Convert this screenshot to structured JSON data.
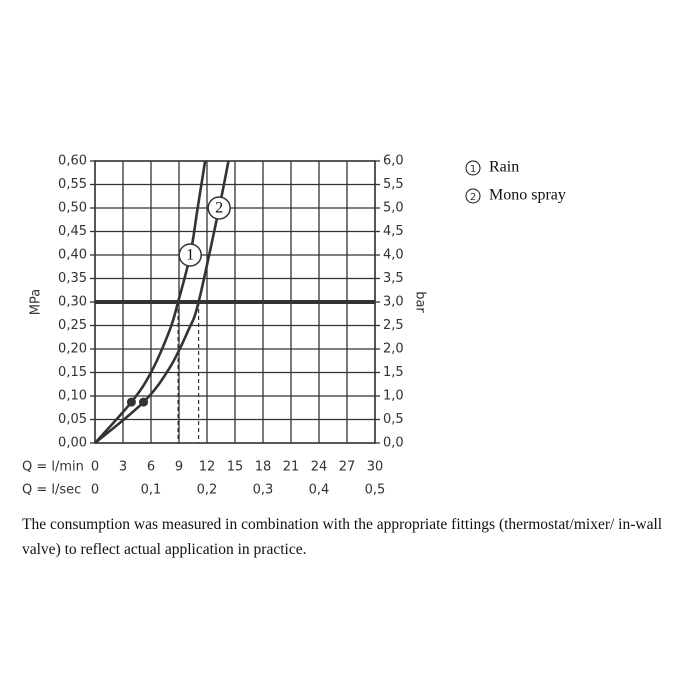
{
  "chart_data": {
    "type": "line",
    "series": [
      {
        "name": "Rain",
        "label": "1",
        "color": "#333333",
        "x": [
          0,
          3.9,
          6,
          8,
          8.9,
          10.2,
          11,
          11.8
        ],
        "values": [
          0,
          0.087,
          0.15,
          0.24,
          0.3,
          0.4,
          0.5,
          0.6
        ]
      },
      {
        "name": "Mono spray",
        "label": "2",
        "color": "#333333",
        "x": [
          0,
          5.2,
          8,
          10,
          11.1,
          13.3,
          14.3
        ],
        "values": [
          0,
          0.087,
          0.16,
          0.24,
          0.3,
          0.5,
          0.6
        ]
      }
    ],
    "xlim": [
      0,
      30
    ],
    "xticks": [
      0,
      3,
      6,
      9,
      12,
      15,
      18,
      21,
      24,
      27,
      30
    ],
    "xlabel": "Q = l/min",
    "x2lim": [
      0,
      0.5
    ],
    "x2ticks": [
      0,
      {
        "value": 0.1,
        "label": "0,1"
      },
      {
        "value": 0.2,
        "label": "0,2"
      },
      {
        "value": 0.3,
        "label": "0,3"
      },
      {
        "value": 0.4,
        "label": "0,4"
      },
      {
        "value": 0.5,
        "label": "0,5"
      }
    ],
    "x2label": "Q = l/sec",
    "ylim": [
      0,
      0.6
    ],
    "ylabel": "MPa",
    "yticks": [
      {
        "value": 0,
        "label": "0,00"
      },
      {
        "value": 0.05,
        "label": "0,05"
      },
      {
        "value": 0.1,
        "label": "0,10"
      },
      {
        "value": 0.15,
        "label": "0,15"
      },
      {
        "value": 0.2,
        "label": "0,20"
      },
      {
        "value": 0.25,
        "label": "0,25"
      },
      {
        "value": 0.3,
        "label": "0,30"
      },
      {
        "value": 0.35,
        "label": "0,35"
      },
      {
        "value": 0.4,
        "label": "0,40"
      },
      {
        "value": 0.45,
        "label": "0,45"
      },
      {
        "value": 0.5,
        "label": "0,50"
      },
      {
        "value": 0.55,
        "label": "0,55"
      },
      {
        "value": 0.6,
        "label": "0,60"
      }
    ],
    "y2lim": [
      0,
      6
    ],
    "y2label": "bar",
    "y2ticks": [
      {
        "value": 0,
        "label": "0,0"
      },
      {
        "value": 0.5,
        "label": "0,5"
      },
      {
        "value": 1,
        "label": "1,0"
      },
      {
        "value": 1.5,
        "label": "1,5"
      },
      {
        "value": 2,
        "label": "2,0"
      },
      {
        "value": 2.5,
        "label": "2,5"
      },
      {
        "value": 3,
        "label": "3,0"
      },
      {
        "value": 3.5,
        "label": "3,5"
      },
      {
        "value": 4,
        "label": "4,0"
      },
      {
        "value": 4.5,
        "label": "4,5"
      },
      {
        "value": 5,
        "label": "5,0"
      },
      {
        "value": 5.5,
        "label": "5,5"
      },
      {
        "value": 6,
        "label": "6,0"
      }
    ],
    "reference_line": 0.3,
    "grid": true,
    "note": "The consumption was measured in combination with the appropriate fittings (thermostat/mixer/ in-wall valve) to reflect actual application in practice."
  }
}
